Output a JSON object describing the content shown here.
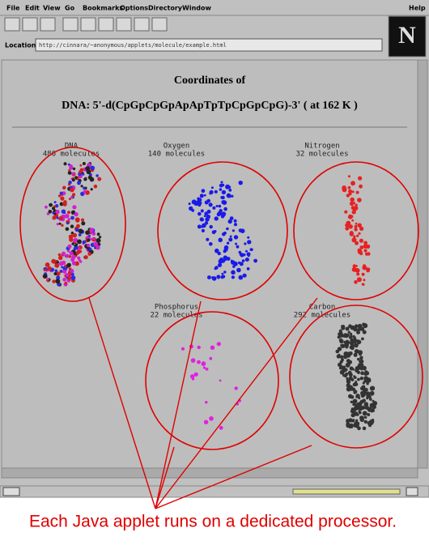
{
  "menu": [
    "File",
    "Edit",
    "View",
    "Go",
    "Bookmarks",
    "Options",
    "Directory",
    "Window",
    "Help"
  ],
  "location": {
    "label": "Location:",
    "url": "http://cinnara/~anonymous/applets/molecule/example.html"
  },
  "content": {
    "heading": "Coordinates of",
    "subheading": "DNA: 5'-d(CpGpCpGpApApTpTpCpGpCpG)-3' ( at 162 K )",
    "applets": [
      {
        "name": "DNA",
        "count": "486 molecules"
      },
      {
        "name": "Oxygen",
        "count": "140 molecules"
      },
      {
        "name": "Nitrogen",
        "count": "32 molecules"
      },
      {
        "name": "Phosphorus",
        "count": "22 molecules"
      },
      {
        "name": "Carbon",
        "count": "292 molecules"
      }
    ]
  },
  "caption": "Each Java applet runs on a dedicated processor."
}
